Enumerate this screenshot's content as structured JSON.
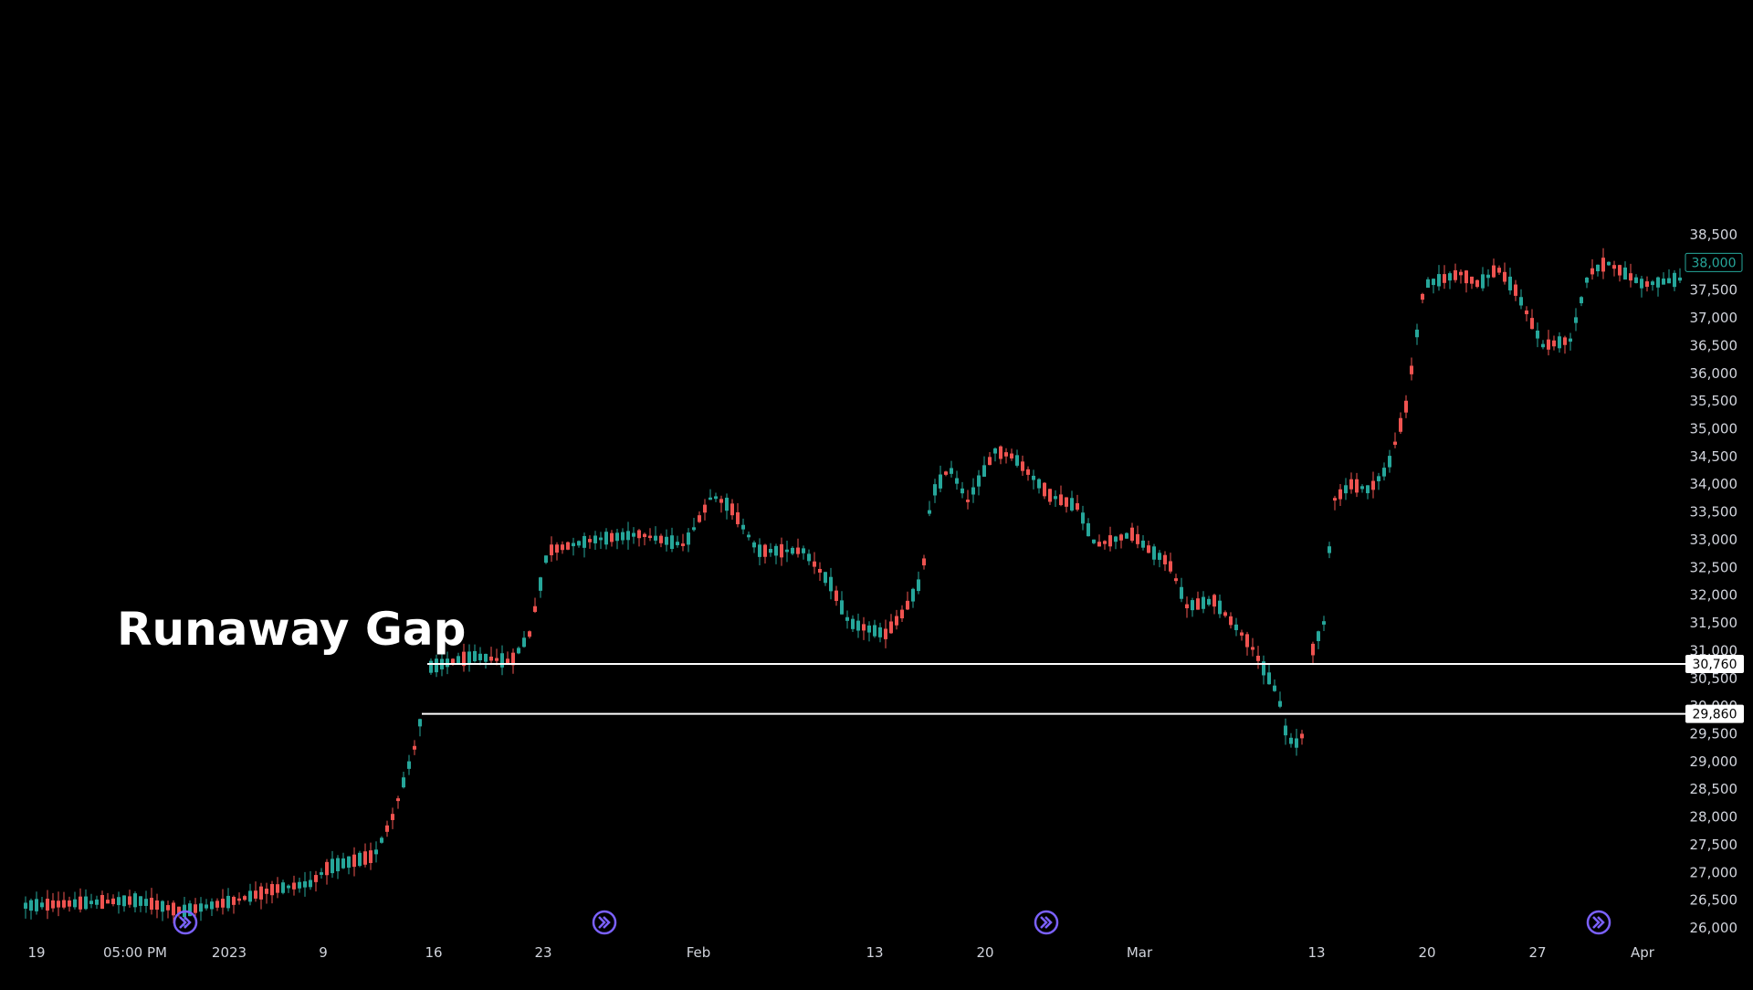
{
  "annotation": {
    "text": "Runaway Gap"
  },
  "price_axis": {
    "ticks": [
      "38,500",
      "37,500",
      "37,000",
      "36,500",
      "36,000",
      "35,500",
      "35,000",
      "34,500",
      "34,000",
      "33,500",
      "33,000",
      "32,500",
      "32,000",
      "31,500",
      "31,000",
      "30,500",
      "30,000",
      "29,500",
      "29,000",
      "28,500",
      "28,000",
      "27,500",
      "27,000",
      "26,500",
      "26,000"
    ],
    "tick_values": [
      38500,
      37500,
      37000,
      36500,
      36000,
      35500,
      35000,
      34500,
      34000,
      33500,
      33000,
      32500,
      32000,
      31500,
      31000,
      30500,
      30000,
      29500,
      29000,
      28500,
      28000,
      27500,
      27000,
      26500,
      26000
    ],
    "last_price_label": "38,000",
    "last_price": 38000
  },
  "time_axis": {
    "labels": [
      "19",
      "05:00 PM",
      "2023",
      "9",
      "16",
      "23",
      "Feb",
      "13",
      "20",
      "Mar",
      "13",
      "20",
      "27",
      "Apr"
    ]
  },
  "gap_lines": [
    {
      "value": 30760,
      "label": "30,760"
    },
    {
      "value": 29860,
      "label": "29,860"
    }
  ],
  "colors": {
    "up": "#26a69a",
    "down": "#ef5350",
    "background": "#000000",
    "line": "#ffffff",
    "event_icon": "#7b61ff",
    "last_price": "#26a69a"
  },
  "event_icons": [
    "forward-arrow-icon",
    "forward-arrow-icon",
    "forward-arrow-icon",
    "forward-arrow-icon"
  ],
  "chart_data": {
    "type": "candlestick",
    "ylim": [
      25800,
      38800
    ],
    "y_unit": "price",
    "key_levels": [
      {
        "date": "Dec 19",
        "close": 26400
      },
      {
        "date": "Jan 1",
        "close": 26300
      },
      {
        "date": "Jan 13",
        "close": 29860
      },
      {
        "date": "Jan 16",
        "close": 30760
      },
      {
        "date": "Jan 25",
        "close": 33000
      },
      {
        "date": "Feb 3",
        "close": 33700
      },
      {
        "date": "Feb 14",
        "close": 31200
      },
      {
        "date": "Feb 17",
        "close": 34600
      },
      {
        "date": "Feb 20",
        "close": 34500
      },
      {
        "date": "Mar 1",
        "close": 33000
      },
      {
        "date": "Mar 9",
        "close": 31000
      },
      {
        "date": "Mar 10",
        "close": 29200
      },
      {
        "date": "Mar 13",
        "close": 31500
      },
      {
        "date": "Mar 21",
        "close": 37400
      },
      {
        "date": "Mar 28",
        "close": 36400
      },
      {
        "date": "Apr 3",
        "close": 37700
      }
    ]
  }
}
